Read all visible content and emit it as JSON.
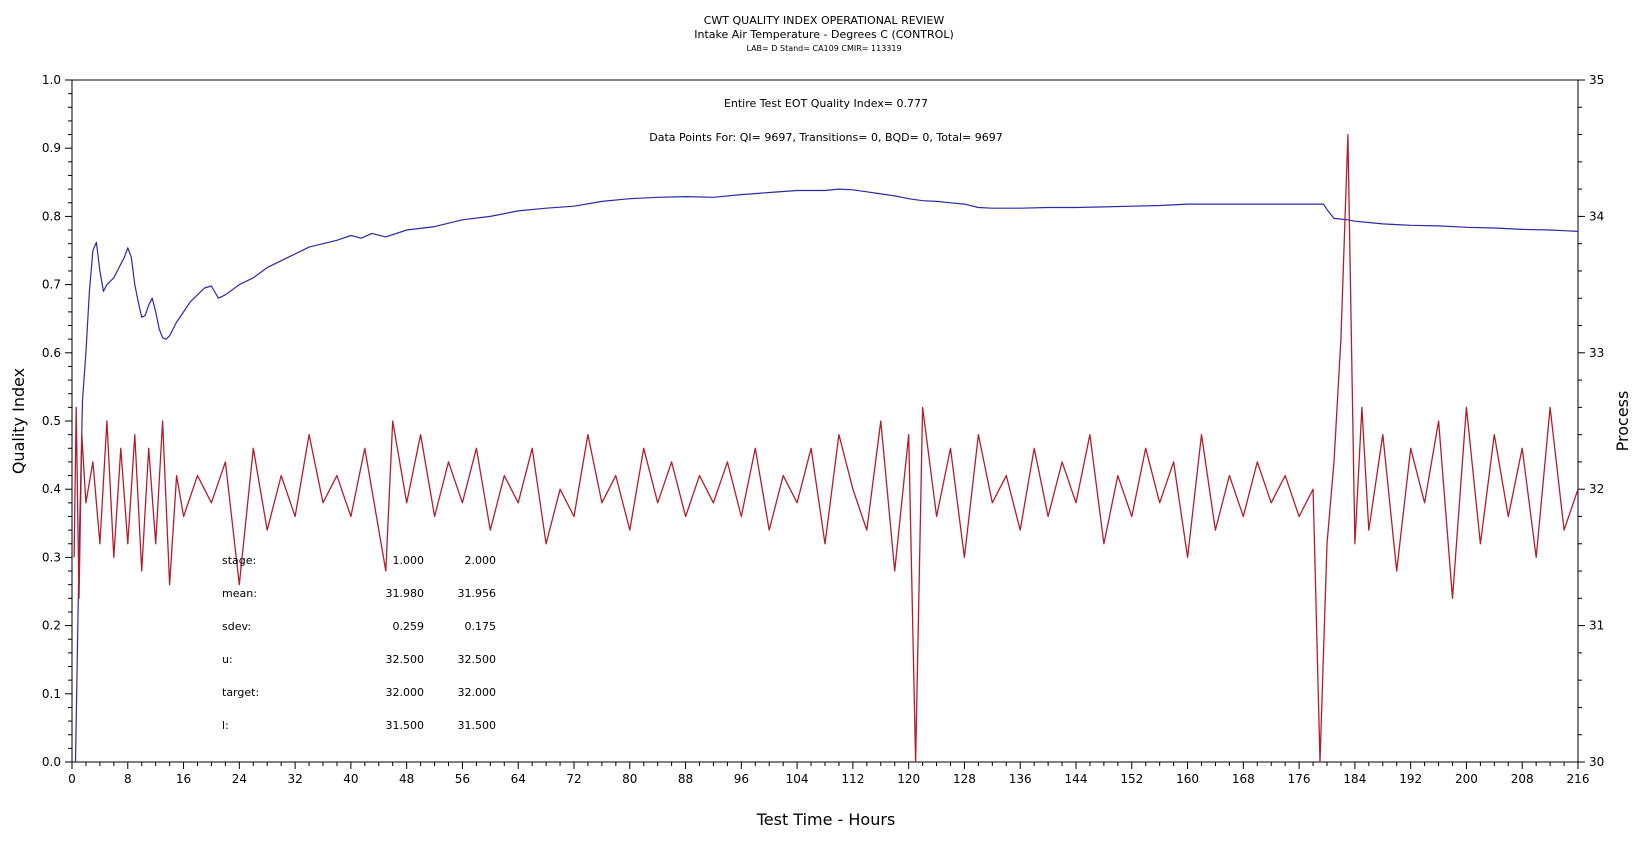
{
  "chart_data": {
    "type": "line",
    "title": "CWT QUALITY INDEX OPERATIONAL REVIEW",
    "subtitle": "Intake Air Temperature - Degrees C (CONTROL)",
    "subtitle2": "LAB= D Stand= CA109 CMIR= 113319",
    "annotation1": "Entire Test EOT Quality Index=   0.777",
    "annotation2": "Data Points For: QI=  9697, Transitions=     0, BQD=     0, Total=  9697",
    "xlabel": "Test Time - Hours",
    "ylabel_left": "Quality Index",
    "ylabel_right": "Process",
    "xlim": [
      0,
      216
    ],
    "ylim_left": [
      0,
      1
    ],
    "ylim_right": [
      30,
      35
    ],
    "x_ticks": [
      "0",
      "8",
      "16",
      "24",
      "32",
      "40",
      "48",
      "56",
      "64",
      "72",
      "80",
      "88",
      "96",
      "104",
      "112",
      "120",
      "128",
      "136",
      "144",
      "152",
      "160",
      "168",
      "176",
      "184",
      "192",
      "200",
      "208",
      "216"
    ],
    "y_left_ticks": [
      "0.0",
      "0.1",
      "0.2",
      "0.3",
      "0.4",
      "0.5",
      "0.6",
      "0.7",
      "0.8",
      "0.9",
      "1.0"
    ],
    "y_right_ticks": [
      "30",
      "31",
      "32",
      "33",
      "34",
      "35"
    ],
    "series": [
      {
        "color": "#2a2aa8",
        "axis": "left",
        "x": [
          0.5,
          1.0,
          1.5,
          2.0,
          2.5,
          3.0,
          3.5,
          4.0,
          4.5,
          5.0,
          6.0,
          7.0,
          7.5,
          8.0,
          8.5,
          9.0,
          9.5,
          10.0,
          10.5,
          11.0,
          11.5,
          12.0,
          12.5,
          13.0,
          13.5,
          14.0,
          15.0,
          16.0,
          17.0,
          18.0,
          19.0,
          20.0,
          21.0,
          22.0,
          24.0,
          26.0,
          28.0,
          30.0,
          32.0,
          34.0,
          36.0,
          38.0,
          40.0,
          41.5,
          43.0,
          45.0,
          48.0,
          52.0,
          56.0,
          60.0,
          64.0,
          68.0,
          72.0,
          76.0,
          80.0,
          84.0,
          88.0,
          92.0,
          96.0,
          100.0,
          104.0,
          108.0,
          110.0,
          112.0,
          114.0,
          116.0,
          118.0,
          120.0,
          122.0,
          124.0,
          126.0,
          128.0,
          130.0,
          132.0,
          134.0,
          136.0,
          140.0,
          144.0,
          148.0,
          152.0,
          156.0,
          160.0,
          164.0,
          168.0,
          172.0,
          176.0,
          178.0,
          179.5,
          180.0,
          181.0,
          182.0,
          183.0,
          184.0,
          186.0,
          188.0,
          190.0,
          192.0,
          196.0,
          200.0,
          204.0,
          208.0,
          212.0,
          214.0,
          216.0
        ],
        "y": [
          0.0,
          0.3,
          0.53,
          0.6,
          0.69,
          0.75,
          0.762,
          0.72,
          0.69,
          0.7,
          0.71,
          0.73,
          0.74,
          0.754,
          0.74,
          0.7,
          0.675,
          0.652,
          0.655,
          0.67,
          0.68,
          0.66,
          0.635,
          0.622,
          0.62,
          0.625,
          0.645,
          0.66,
          0.675,
          0.685,
          0.695,
          0.698,
          0.68,
          0.685,
          0.7,
          0.71,
          0.725,
          0.735,
          0.745,
          0.755,
          0.76,
          0.765,
          0.772,
          0.768,
          0.775,
          0.77,
          0.78,
          0.785,
          0.795,
          0.8,
          0.808,
          0.812,
          0.815,
          0.822,
          0.826,
          0.828,
          0.829,
          0.828,
          0.832,
          0.835,
          0.838,
          0.838,
          0.84,
          0.839,
          0.836,
          0.833,
          0.83,
          0.826,
          0.823,
          0.822,
          0.82,
          0.818,
          0.813,
          0.812,
          0.812,
          0.812,
          0.813,
          0.813,
          0.814,
          0.815,
          0.816,
          0.818,
          0.818,
          0.818,
          0.818,
          0.818,
          0.818,
          0.818,
          0.81,
          0.797,
          0.796,
          0.795,
          0.793,
          0.791,
          0.789,
          0.788,
          0.787,
          0.786,
          0.784,
          0.783,
          0.781,
          0.78,
          0.779,
          0.778
        ]
      },
      {
        "color": "#b01e2e",
        "axis": "right",
        "x": [
          0.3,
          0.6,
          1.0,
          1.4,
          2.0,
          3.0,
          4.0,
          5.0,
          6.0,
          7.0,
          8.0,
          9.0,
          10.0,
          11.0,
          12.0,
          13.0,
          14.0,
          15.0,
          16.0,
          18.0,
          20.0,
          22.0,
          24.0,
          26.0,
          28.0,
          30.0,
          32.0,
          34.0,
          36.0,
          38.0,
          40.0,
          42.0,
          44.0,
          45.0,
          46.0,
          48.0,
          50.0,
          52.0,
          54.0,
          56.0,
          58.0,
          60.0,
          62.0,
          64.0,
          66.0,
          68.0,
          70.0,
          72.0,
          74.0,
          76.0,
          78.0,
          80.0,
          82.0,
          84.0,
          86.0,
          88.0,
          90.0,
          92.0,
          94.0,
          96.0,
          98.0,
          100.0,
          102.0,
          104.0,
          106.0,
          108.0,
          110.0,
          112.0,
          114.0,
          116.0,
          118.0,
          120.0,
          121.0,
          122.0,
          124.0,
          126.0,
          128.0,
          130.0,
          132.0,
          134.0,
          136.0,
          138.0,
          140.0,
          142.0,
          144.0,
          146.0,
          148.0,
          150.0,
          152.0,
          154.0,
          156.0,
          158.0,
          160.0,
          162.0,
          164.0,
          166.0,
          168.0,
          170.0,
          172.0,
          174.0,
          176.0,
          178.0,
          179.0,
          180.0,
          181.0,
          182.0,
          183.0,
          184.0,
          185.0,
          186.0,
          188.0,
          190.0,
          192.0,
          194.0,
          196.0,
          198.0,
          200.0,
          202.0,
          204.0,
          206.0,
          208.0,
          210.0,
          212.0,
          214.0,
          216.0
        ],
        "y": [
          31.5,
          32.6,
          31.2,
          32.4,
          31.9,
          32.2,
          31.6,
          32.5,
          31.5,
          32.3,
          31.6,
          32.4,
          31.4,
          32.3,
          31.6,
          32.5,
          31.3,
          32.1,
          31.8,
          32.1,
          31.9,
          32.2,
          31.3,
          32.3,
          31.7,
          32.1,
          31.8,
          32.4,
          31.9,
          32.1,
          31.8,
          32.3,
          31.7,
          31.4,
          32.5,
          31.9,
          32.4,
          31.8,
          32.2,
          31.9,
          32.3,
          31.7,
          32.1,
          31.9,
          32.3,
          31.6,
          32.0,
          31.8,
          32.4,
          31.9,
          32.1,
          31.7,
          32.3,
          31.9,
          32.2,
          31.8,
          32.1,
          31.9,
          32.2,
          31.8,
          32.3,
          31.7,
          32.1,
          31.9,
          32.3,
          31.6,
          32.4,
          32.0,
          31.7,
          32.5,
          31.4,
          32.4,
          30.0,
          32.6,
          31.8,
          32.3,
          31.5,
          32.4,
          31.9,
          32.1,
          31.7,
          32.3,
          31.8,
          32.2,
          31.9,
          32.4,
          31.6,
          32.1,
          31.8,
          32.3,
          31.9,
          32.2,
          31.5,
          32.4,
          31.7,
          32.1,
          31.8,
          32.2,
          31.9,
          32.1,
          31.8,
          32.0,
          30.0,
          31.6,
          32.2,
          33.1,
          34.6,
          31.6,
          32.6,
          31.7,
          32.4,
          31.4,
          32.3,
          31.9,
          32.5,
          31.2,
          32.6,
          31.6,
          32.4,
          31.8,
          32.3,
          31.5,
          32.6,
          31.7,
          32.0
        ]
      }
    ],
    "stats_table": {
      "rows": [
        {
          "label": "stage:",
          "c1": "1.000",
          "c2": "2.000"
        },
        {
          "label": "mean:",
          "c1": "31.980",
          "c2": "31.956"
        },
        {
          "label": "sdev:",
          "c1": "0.259",
          "c2": "0.175"
        },
        {
          "label": "u:",
          "c1": "32.500",
          "c2": "32.500"
        },
        {
          "label": "target:",
          "c1": "32.000",
          "c2": "32.000"
        },
        {
          "label": "l:",
          "c1": "31.500",
          "c2": "31.500"
        }
      ]
    }
  }
}
